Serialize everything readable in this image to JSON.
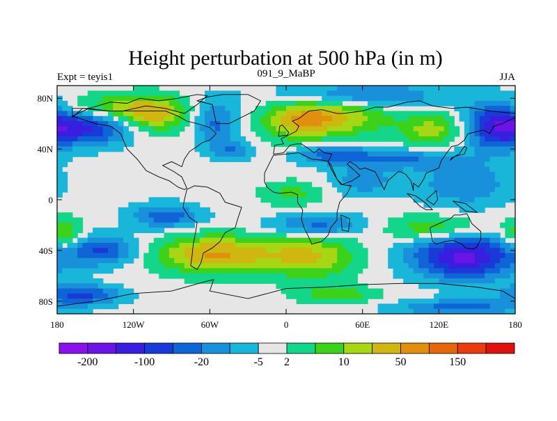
{
  "chart_data": {
    "type": "heatmap",
    "title": "Height perturbation at 500 hPa (in m)",
    "subtitle_left": "Expt = teyis1",
    "subtitle_center": "091_9_MaBP",
    "subtitle_right": "JJA",
    "x_range": [
      -180,
      180
    ],
    "y_range": [
      -90,
      90
    ],
    "x_ticks": [
      {
        "value": -180,
        "label": "180"
      },
      {
        "value": -120,
        "label": "120W"
      },
      {
        "value": -60,
        "label": "60W"
      },
      {
        "value": 0,
        "label": "0"
      },
      {
        "value": 60,
        "label": "60E"
      },
      {
        "value": 120,
        "label": "120E"
      },
      {
        "value": 180,
        "label": "180"
      }
    ],
    "y_ticks": [
      {
        "value": 80,
        "label": "80N"
      },
      {
        "value": 40,
        "label": "40N"
      },
      {
        "value": 0,
        "label": "0"
      },
      {
        "value": -40,
        "label": "40S"
      },
      {
        "value": -80,
        "label": "80S"
      }
    ],
    "colorbar": {
      "colors": [
        "#8a12e8",
        "#6a15e6",
        "#3a1ee0",
        "#1a3ad8",
        "#0f64d6",
        "#1890da",
        "#1ab6da",
        "#e6e6e6",
        "#14d68a",
        "#3cd21c",
        "#a6d614",
        "#d0b610",
        "#e0900e",
        "#e6660e",
        "#e83c10",
        "#e01010"
      ],
      "labels": [
        {
          "after_index": 0,
          "text": "-200"
        },
        {
          "after_index": 2,
          "text": "-100"
        },
        {
          "after_index": 4,
          "text": "-20"
        },
        {
          "after_index": 6,
          "text": "-5"
        },
        {
          "after_index": 7,
          "text": "2"
        },
        {
          "after_index": 9,
          "text": "10"
        },
        {
          "after_index": 11,
          "text": "50"
        },
        {
          "after_index": 13,
          "text": "150"
        }
      ]
    },
    "field_blobs": [
      {
        "lon": -155,
        "lat": 57,
        "rlon": 35,
        "rlat": 14,
        "v": -4.5
      },
      {
        "lon": -105,
        "lat": 67,
        "rlon": 28,
        "rlat": 14,
        "v": 3.8
      },
      {
        "lon": -138,
        "lat": 73,
        "rlon": 40,
        "rlat": 10,
        "v": 2.5
      },
      {
        "lon": -55,
        "lat": 60,
        "rlon": 18,
        "rlat": 20,
        "v": -2.8
      },
      {
        "lon": -42,
        "lat": 38,
        "rlon": 14,
        "rlat": 7,
        "v": -2.2
      },
      {
        "lon": 10,
        "lat": 63,
        "rlon": 30,
        "rlat": 16,
        "v": 3.6
      },
      {
        "lon": 45,
        "lat": 68,
        "rlon": 40,
        "rlat": 18,
        "v": 3.2
      },
      {
        "lon": 55,
        "lat": 82,
        "rlon": 60,
        "rlat": 10,
        "v": -3.8
      },
      {
        "lon": 35,
        "lat": 36,
        "rlon": 30,
        "rlat": 8,
        "v": -3.0
      },
      {
        "lon": 90,
        "lat": 32,
        "rlon": 40,
        "rlat": 8,
        "v": -2.6
      },
      {
        "lon": 115,
        "lat": 55,
        "rlon": 25,
        "rlat": 13,
        "v": 3.0
      },
      {
        "lon": 165,
        "lat": 58,
        "rlon": 25,
        "rlat": 20,
        "v": -4.6
      },
      {
        "lon": 140,
        "lat": 12,
        "rlon": 38,
        "rlat": 18,
        "v": -2.4
      },
      {
        "lon": 5,
        "lat": 5,
        "rlon": 25,
        "rlat": 10,
        "v": 1.8
      },
      {
        "lon": 60,
        "lat": 15,
        "rlon": 25,
        "rlat": 12,
        "v": -2.2
      },
      {
        "lon": -95,
        "lat": -13,
        "rlon": 28,
        "rlat": 10,
        "v": -3.2
      },
      {
        "lon": -55,
        "lat": -43,
        "rlon": 50,
        "rlat": 15,
        "v": 4.6
      },
      {
        "lon": -145,
        "lat": -40,
        "rlon": 30,
        "rlat": 12,
        "v": -3.6
      },
      {
        "lon": -175,
        "lat": -28,
        "rlon": 15,
        "rlat": 14,
        "v": 3.0
      },
      {
        "lon": 20,
        "lat": -45,
        "rlon": 35,
        "rlat": 17,
        "v": 3.4
      },
      {
        "lon": 25,
        "lat": -20,
        "rlon": 40,
        "rlat": 9,
        "v": -3.0
      },
      {
        "lon": 115,
        "lat": -22,
        "rlon": 40,
        "rlat": 10,
        "v": 2.6
      },
      {
        "lon": 140,
        "lat": -45,
        "rlon": 42,
        "rlat": 18,
        "v": -5.8
      },
      {
        "lon": -160,
        "lat": -75,
        "rlon": 30,
        "rlat": 8,
        "v": -3.8
      },
      {
        "lon": 40,
        "lat": -75,
        "rlon": 30,
        "rlat": 7,
        "v": 2.4
      },
      {
        "lon": 135,
        "lat": -85,
        "rlon": 50,
        "rlat": 6,
        "v": -3.0
      }
    ],
    "continent_outlines": [
      [
        [
          -168,
          65
        ],
        [
          -160,
          72
        ],
        [
          -140,
          70
        ],
        [
          -128,
          70
        ],
        [
          -110,
          74
        ],
        [
          -95,
          72
        ],
        [
          -80,
          68
        ],
        [
          -70,
          75
        ],
        [
          -62,
          82
        ],
        [
          -70,
          83
        ],
        [
          -85,
          80
        ],
        [
          -100,
          78
        ],
        [
          -115,
          80
        ],
        [
          -125,
          76
        ],
        [
          -138,
          77
        ],
        [
          -155,
          72
        ],
        [
          -168,
          72
        ],
        [
          -168,
          65
        ]
      ],
      [
        [
          -168,
          66
        ],
        [
          -150,
          60
        ],
        [
          -138,
          58
        ],
        [
          -130,
          52
        ],
        [
          -125,
          40
        ],
        [
          -117,
          32
        ],
        [
          -110,
          23
        ],
        [
          -100,
          18
        ],
        [
          -92,
          15
        ],
        [
          -85,
          10
        ],
        [
          -80,
          8
        ],
        [
          -78,
          9
        ],
        [
          -82,
          18
        ],
        [
          -88,
          22
        ],
        [
          -97,
          27
        ],
        [
          -90,
          30
        ],
        [
          -82,
          26
        ],
        [
          -80,
          32
        ],
        [
          -76,
          38
        ],
        [
          -70,
          42
        ],
        [
          -66,
          45
        ],
        [
          -60,
          47
        ],
        [
          -55,
          52
        ],
        [
          -60,
          57
        ],
        [
          -70,
          60
        ],
        [
          -78,
          62
        ],
        [
          -85,
          66
        ],
        [
          -95,
          70
        ],
        [
          -110,
          70
        ],
        [
          -128,
          70
        ],
        [
          -140,
          70
        ],
        [
          -155,
          72
        ],
        [
          -168,
          66
        ]
      ],
      [
        [
          -78,
          8
        ],
        [
          -72,
          11
        ],
        [
          -62,
          10
        ],
        [
          -52,
          5
        ],
        [
          -48,
          -2
        ],
        [
          -35,
          -6
        ],
        [
          -38,
          -15
        ],
        [
          -40,
          -22
        ],
        [
          -48,
          -26
        ],
        [
          -52,
          -33
        ],
        [
          -58,
          -38
        ],
        [
          -65,
          -42
        ],
        [
          -67,
          -50
        ],
        [
          -70,
          -55
        ],
        [
          -75,
          -52
        ],
        [
          -74,
          -45
        ],
        [
          -73,
          -35
        ],
        [
          -71,
          -25
        ],
        [
          -70,
          -18
        ],
        [
          -76,
          -14
        ],
        [
          -81,
          -6
        ],
        [
          -80,
          0
        ],
        [
          -78,
          8
        ]
      ],
      [
        [
          -55,
          60
        ],
        [
          -45,
          60
        ],
        [
          -25,
          70
        ],
        [
          -20,
          78
        ],
        [
          -30,
          83
        ],
        [
          -50,
          83
        ],
        [
          -62,
          81
        ],
        [
          -70,
          78
        ],
        [
          -58,
          75
        ],
        [
          -55,
          60
        ]
      ],
      [
        [
          -10,
          36
        ],
        [
          -9,
          43
        ],
        [
          -2,
          44
        ],
        [
          -4,
          48
        ],
        [
          2,
          51
        ],
        [
          8,
          54
        ],
        [
          10,
          58
        ],
        [
          5,
          62
        ],
        [
          10,
          64
        ],
        [
          18,
          70
        ],
        [
          28,
          71
        ],
        [
          40,
          68
        ],
        [
          45,
          68
        ],
        [
          60,
          70
        ],
        [
          70,
          73
        ],
        [
          80,
          73
        ],
        [
          95,
          77
        ],
        [
          105,
          78
        ],
        [
          115,
          74
        ],
        [
          130,
          72
        ],
        [
          142,
          73
        ],
        [
          160,
          70
        ],
        [
          170,
          69
        ],
        [
          180,
          68
        ],
        [
          180,
          65
        ],
        [
          170,
          60
        ],
        [
          163,
          58
        ],
        [
          160,
          52
        ],
        [
          155,
          55
        ],
        [
          143,
          52
        ],
        [
          140,
          47
        ],
        [
          135,
          43
        ],
        [
          130,
          42
        ],
        [
          127,
          38
        ],
        [
          122,
          31
        ],
        [
          120,
          25
        ],
        [
          110,
          21
        ],
        [
          108,
          16
        ],
        [
          104,
          10
        ],
        [
          100,
          13
        ],
        [
          100,
          7
        ],
        [
          98,
          15
        ],
        [
          94,
          20
        ],
        [
          90,
          22
        ],
        [
          88,
          22
        ],
        [
          80,
          15
        ],
        [
          77,
          8
        ],
        [
          73,
          16
        ],
        [
          70,
          22
        ],
        [
          62,
          25
        ],
        [
          58,
          24
        ],
        [
          55,
          27
        ],
        [
          50,
          30
        ],
        [
          48,
          28
        ],
        [
          55,
          22
        ],
        [
          58,
          19
        ],
        [
          52,
          15
        ],
        [
          44,
          12
        ],
        [
          40,
          16
        ],
        [
          35,
          28
        ],
        [
          33,
          30
        ],
        [
          36,
          36
        ],
        [
          30,
          37
        ],
        [
          26,
          40
        ],
        [
          22,
          37
        ],
        [
          18,
          40
        ],
        [
          12,
          44
        ],
        [
          8,
          44
        ],
        [
          3,
          43
        ],
        [
          -2,
          37
        ],
        [
          -10,
          36
        ]
      ],
      [
        [
          -17,
          21
        ],
        [
          -10,
          35
        ],
        [
          0,
          36
        ],
        [
          10,
          37
        ],
        [
          20,
          32
        ],
        [
          30,
          31
        ],
        [
          33,
          30
        ],
        [
          35,
          25
        ],
        [
          40,
          16
        ],
        [
          43,
          12
        ],
        [
          51,
          11
        ],
        [
          48,
          5
        ],
        [
          42,
          -2
        ],
        [
          40,
          -10
        ],
        [
          40,
          -16
        ],
        [
          35,
          -22
        ],
        [
          33,
          -28
        ],
        [
          28,
          -33
        ],
        [
          20,
          -35
        ],
        [
          18,
          -30
        ],
        [
          14,
          -22
        ],
        [
          12,
          -15
        ],
        [
          13,
          -8
        ],
        [
          9,
          -2
        ],
        [
          9,
          4
        ],
        [
          4,
          6
        ],
        [
          -5,
          5
        ],
        [
          -10,
          6
        ],
        [
          -15,
          10
        ],
        [
          -17,
          14
        ],
        [
          -17,
          21
        ]
      ],
      [
        [
          113,
          -22
        ],
        [
          115,
          -33
        ],
        [
          118,
          -35
        ],
        [
          125,
          -33
        ],
        [
          131,
          -32
        ],
        [
          138,
          -35
        ],
        [
          141,
          -38
        ],
        [
          147,
          -39
        ],
        [
          150,
          -37
        ],
        [
          153,
          -31
        ],
        [
          153,
          -25
        ],
        [
          146,
          -19
        ],
        [
          142,
          -11
        ],
        [
          137,
          -12
        ],
        [
          132,
          -12
        ],
        [
          129,
          -15
        ],
        [
          122,
          -18
        ],
        [
          113,
          -22
        ]
      ],
      [
        [
          -180,
          -84
        ],
        [
          -150,
          -80
        ],
        [
          -120,
          -74
        ],
        [
          -90,
          -72
        ],
        [
          -65,
          -65
        ],
        [
          -57,
          -63
        ],
        [
          -60,
          -72
        ],
        [
          -30,
          -78
        ],
        [
          0,
          -70
        ],
        [
          30,
          -69
        ],
        [
          60,
          -67
        ],
        [
          90,
          -66
        ],
        [
          120,
          -66
        ],
        [
          150,
          -69
        ],
        [
          170,
          -72
        ],
        [
          180,
          -78
        ],
        [
          180,
          -90
        ],
        [
          -180,
          -90
        ],
        [
          -180,
          -84
        ]
      ],
      [
        [
          -6,
          50
        ],
        [
          -5,
          58
        ],
        [
          -3,
          59
        ],
        [
          2,
          53
        ],
        [
          1,
          51
        ],
        [
          -6,
          50
        ]
      ],
      [
        [
          95,
          5
        ],
        [
          105,
          -5
        ],
        [
          110,
          -8
        ],
        [
          115,
          -8
        ],
        [
          110,
          -3
        ],
        [
          102,
          3
        ],
        [
          95,
          5
        ]
      ],
      [
        [
          110,
          0
        ],
        [
          118,
          7
        ],
        [
          119,
          0
        ],
        [
          116,
          -4
        ],
        [
          110,
          0
        ]
      ],
      [
        [
          131,
          -1
        ],
        [
          141,
          -3
        ],
        [
          150,
          -10
        ],
        [
          141,
          -9
        ],
        [
          131,
          -1
        ]
      ],
      [
        [
          129,
          31
        ],
        [
          132,
          34
        ],
        [
          140,
          36
        ],
        [
          142,
          41
        ],
        [
          140,
          42
        ],
        [
          136,
          36
        ],
        [
          130,
          33
        ],
        [
          129,
          31
        ]
      ],
      [
        [
          43,
          -12
        ],
        [
          50,
          -15
        ],
        [
          49,
          -25
        ],
        [
          44,
          -24
        ],
        [
          43,
          -12
        ]
      ]
    ]
  }
}
